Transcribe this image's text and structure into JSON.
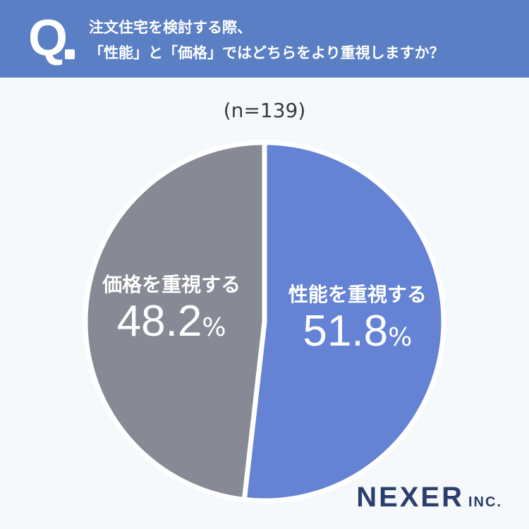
{
  "header": {
    "q_mark": "Q",
    "line1": "注文住宅を検討する際、",
    "line2": "「性能」と「価格」ではどちらをより重視しますか？"
  },
  "sample_size": "(n=139)",
  "chart_data": {
    "type": "pie",
    "slices": [
      {
        "label": "性能を重視する",
        "value": 51.8,
        "value_text": "51.8",
        "unit": "%",
        "color": "#6583d4"
      },
      {
        "label": "価格を重視する",
        "value": 48.2,
        "value_text": "48.2",
        "unit": "%",
        "color": "#878994"
      }
    ],
    "start": "top",
    "direction": "clockwise",
    "n": 139
  },
  "logo": {
    "main": "NEXER",
    "sub": "INC."
  }
}
